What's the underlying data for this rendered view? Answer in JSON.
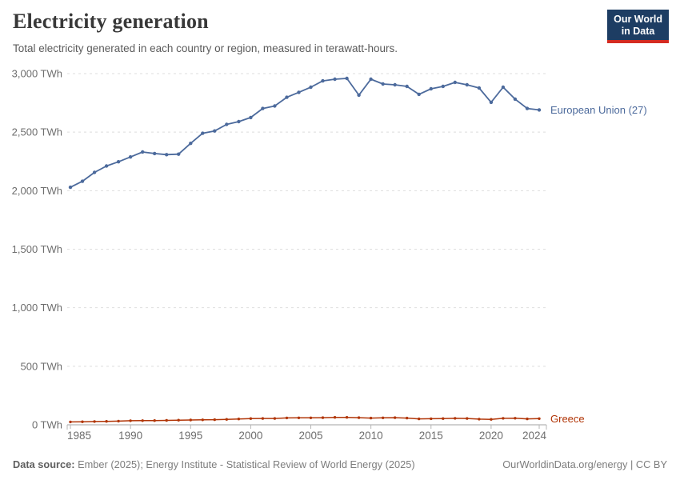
{
  "header": {
    "title": "Electricity generation",
    "subtitle": "Total electricity generated in each country or region, measured in terawatt-hours."
  },
  "logo": {
    "line1": "Our World",
    "line2": "in Data"
  },
  "footer": {
    "source_label": "Data source:",
    "source_text": " Ember (2025); Energy Institute - Statistical Review of World Energy (2025)",
    "credit": "OurWorldinData.org/energy | CC BY"
  },
  "chart_data": {
    "type": "line",
    "x": [
      1985,
      1986,
      1987,
      1988,
      1989,
      1990,
      1991,
      1992,
      1993,
      1994,
      1995,
      1996,
      1997,
      1998,
      1999,
      2000,
      2001,
      2002,
      2003,
      2004,
      2005,
      2006,
      2007,
      2008,
      2009,
      2010,
      2011,
      2012,
      2013,
      2014,
      2015,
      2016,
      2017,
      2018,
      2019,
      2020,
      2021,
      2022,
      2023,
      2024
    ],
    "series": [
      {
        "name": "European Union (27)",
        "color": "#4C6A9C",
        "values": [
          2029,
          2080,
          2156,
          2211,
          2247,
          2288,
          2330,
          2317,
          2308,
          2312,
          2404,
          2490,
          2510,
          2566,
          2590,
          2625,
          2702,
          2723,
          2798,
          2840,
          2884,
          2938,
          2952,
          2959,
          2816,
          2952,
          2911,
          2904,
          2891,
          2823,
          2870,
          2891,
          2925,
          2904,
          2877,
          2755,
          2884,
          2782,
          2702,
          2690
        ]
      },
      {
        "name": "Greece",
        "color": "#B13507",
        "values": [
          24.8,
          26.2,
          27.7,
          29.5,
          31.4,
          34.8,
          35.6,
          36.4,
          37.5,
          39.3,
          41.0,
          42.6,
          43.5,
          46.3,
          49.8,
          53.4,
          53.8,
          54.1,
          58.5,
          59.4,
          59.5,
          60.8,
          63.5,
          63.7,
          61.1,
          57.4,
          59.4,
          61.0,
          57.1,
          50.4,
          52.1,
          53.1,
          55.2,
          53.7,
          48.6,
          46.6,
          55.5,
          56.1,
          50.8,
          52.5
        ]
      }
    ],
    "title": "Electricity generation",
    "xlabel": "",
    "ylabel": "TWh",
    "xlim": [
      1985,
      2024
    ],
    "ylim": [
      0,
      3000
    ],
    "yticks": [
      0,
      500,
      1000,
      1500,
      2000,
      2500,
      3000
    ],
    "ytick_labels": [
      "0 TWh",
      "500 TWh",
      "1,000 TWh",
      "1,500 TWh",
      "2,000 TWh",
      "2,500 TWh",
      "3,000 TWh"
    ],
    "xticks": [
      1985,
      1990,
      1995,
      2000,
      2005,
      2010,
      2015,
      2020,
      2024
    ],
    "grid": "horizontal-dashed",
    "legend_position": "right-end-labels"
  }
}
